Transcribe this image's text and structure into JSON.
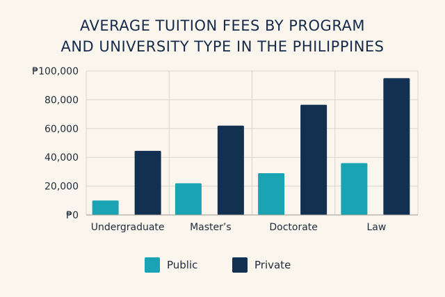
{
  "chart_data": {
    "type": "bar",
    "title_lines": [
      "AVERAGE TUITION FEES BY PROGRAM",
      "AND UNIVERSITY TYPE IN THE PHILIPPINES"
    ],
    "categories": [
      "Undergraduate",
      "Master’s",
      "Doctorate",
      "Law"
    ],
    "series": [
      {
        "name": "Public",
        "color": "#1aa3b2",
        "values": [
          10000,
          22000,
          29000,
          36000
        ]
      },
      {
        "name": "Private",
        "color": "#12304f",
        "values": [
          44500,
          62000,
          76500,
          95000
        ]
      }
    ],
    "ylim": [
      0,
      100000
    ],
    "yticks": [
      0,
      20000,
      40000,
      60000,
      80000,
      100000
    ],
    "ytick_labels": [
      "₱0",
      "20,000",
      "40,000",
      "60,000",
      "80,000",
      "₱100,000"
    ],
    "xlabel": "",
    "ylabel": "",
    "grid": true,
    "legend_position": "bottom"
  }
}
